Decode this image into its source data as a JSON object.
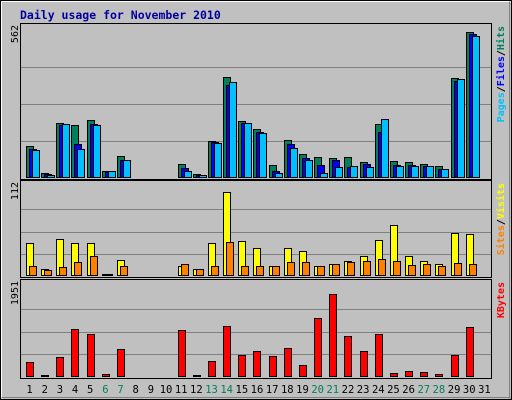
{
  "chart_data": {
    "type": "bar",
    "title": "Daily usage for November 2010",
    "categories": [
      "1",
      "2",
      "3",
      "4",
      "5",
      "6",
      "7",
      "8",
      "9",
      "10",
      "11",
      "12",
      "13",
      "14",
      "15",
      "16",
      "17",
      "18",
      "19",
      "20",
      "21",
      "22",
      "23",
      "24",
      "25",
      "26",
      "27",
      "28",
      "29",
      "30",
      "31"
    ],
    "weekend_days": [
      "6",
      "7",
      "13",
      "14",
      "20",
      "21",
      "27",
      "28"
    ],
    "panels": [
      {
        "id": "hits",
        "ymax": 562,
        "ymax_label": "562",
        "side_labels": [
          "Pages",
          "Files",
          "Hits"
        ],
        "series": [
          {
            "name": "Hits",
            "color": "#00805c",
            "values": [
              120,
              18,
              210,
              200,
              220,
              28,
              85,
              0,
              0,
              0,
              55,
              15,
              140,
              385,
              215,
              185,
              50,
              145,
              90,
              80,
              75,
              78,
              60,
              205,
              65,
              60,
              55,
              45,
              380,
              555,
              0
            ]
          },
          {
            "name": "Files",
            "color": "#0000ff",
            "values": [
              110,
              14,
              200,
              130,
              205,
              24,
              70,
              0,
              0,
              0,
              38,
              12,
              135,
              355,
              210,
              175,
              25,
              130,
              75,
              50,
              70,
              40,
              55,
              175,
              50,
              50,
              45,
              35,
              370,
              545,
              0
            ]
          },
          {
            "name": "Pages",
            "color": "#00c0ff",
            "values": [
              105,
              10,
              205,
              110,
              200,
              25,
              70,
              0,
              0,
              0,
              28,
              10,
              132,
              365,
              208,
              170,
              18,
              115,
              70,
              18,
              40,
              45,
              42,
              225,
              45,
              45,
              45,
              35,
              375,
              540,
              0
            ]
          }
        ]
      },
      {
        "id": "visits",
        "ymax": 112,
        "ymax_label": "112",
        "side_labels": [
          "Sites",
          "Visits"
        ],
        "series": [
          {
            "name": "Visits",
            "color": "#ffff00",
            "values": [
              42,
              9,
              47,
              41,
              41,
              3,
              20,
              0,
              0,
              0,
              12,
              9,
              41,
              106,
              44,
              35,
              12,
              35,
              32,
              12,
              15,
              19,
              25,
              45,
              64,
              25,
              19,
              15,
              54,
              53,
              0
            ]
          },
          {
            "name": "Sites",
            "color": "#ff8000",
            "values": [
              12,
              8,
              11,
              18,
              25,
              3,
              13,
              0,
              0,
              0,
              15,
              9,
              13,
              43,
              13,
              13,
              13,
              18,
              18,
              13,
              15,
              18,
              19,
              22,
              19,
              14,
              15,
              13,
              16,
              15,
              0
            ]
          }
        ]
      },
      {
        "id": "kbytes",
        "ymax": 1951,
        "ymax_label": "1951",
        "side_labels": [
          "KBytes"
        ],
        "series": [
          {
            "name": "KBytes",
            "color": "#ff0000",
            "values": [
              330,
              35,
              420,
              1030,
              930,
              70,
              600,
              0,
              0,
              0,
              1010,
              40,
              340,
              1090,
              480,
              560,
              460,
              620,
              250,
              1270,
              1790,
              880,
              560,
              920,
              80,
              120,
              100,
              70,
              470,
              1070,
              0
            ]
          }
        ]
      }
    ]
  }
}
